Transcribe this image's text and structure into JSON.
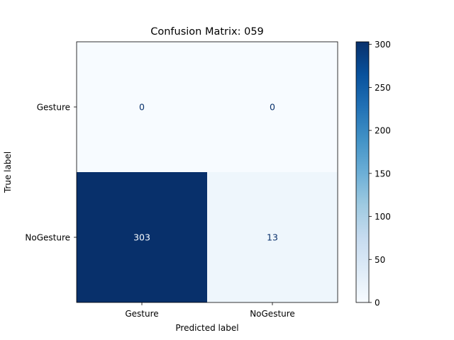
{
  "chart_data": {
    "type": "heatmap",
    "title": "Confusion Matrix: 059",
    "xlabel": "Predicted label",
    "ylabel": "True label",
    "x_categories": [
      "Gesture",
      "NoGesture"
    ],
    "y_categories": [
      "Gesture",
      "NoGesture"
    ],
    "values": [
      [
        0,
        0
      ],
      [
        303,
        13
      ]
    ],
    "colormap": "Blues",
    "colorbar": {
      "min": 0,
      "max": 303,
      "ticks": [
        0,
        50,
        100,
        150,
        200,
        250,
        300
      ]
    },
    "colors": {
      "low": "#f7fbff",
      "high": "#08306b",
      "text_on_light": "#08306b",
      "text_on_dark": "#f7fbff"
    },
    "grid": false
  }
}
